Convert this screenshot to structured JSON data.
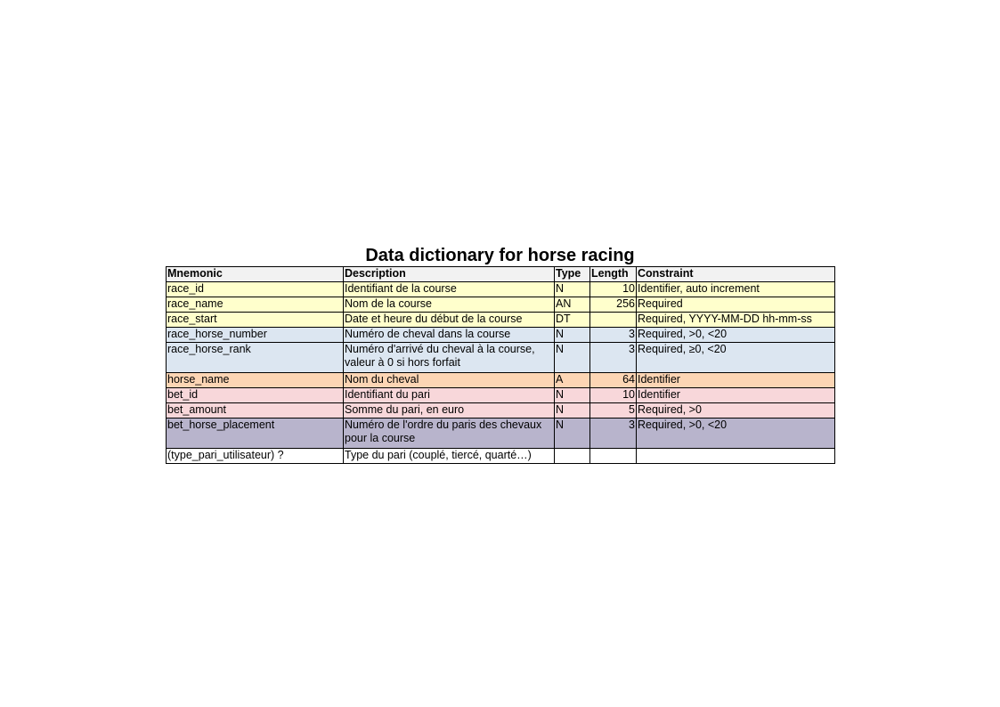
{
  "title": "Data dictionary for horse racing",
  "columns": [
    "Mnemonic",
    "Description",
    "Type",
    "Length",
    "Constraint"
  ],
  "header_color": "#f2f2f2",
  "rows": [
    {
      "mnemonic": "race_id",
      "description": "Identifiant de la course",
      "type": "N",
      "length": "10",
      "constraint": "Identifier, auto increment",
      "color": "#ffffcc"
    },
    {
      "mnemonic": "race_name",
      "description": "Nom de la course",
      "type": "AN",
      "length": "256",
      "constraint": "Required",
      "color": "#ffffcc"
    },
    {
      "mnemonic": "race_start",
      "description": "Date et heure du début de la course",
      "type": "DT",
      "length": "",
      "constraint": "Required, YYYY-MM-DD hh-mm-ss",
      "color": "#ffffcc"
    },
    {
      "mnemonic": "race_horse_number",
      "description": "Numéro de cheval dans la course",
      "type": "N",
      "length": "3",
      "constraint": "Required, >0, <20",
      "color": "#dce6f1"
    },
    {
      "mnemonic": "race_horse_rank",
      "description": "Numéro d'arrivé du cheval à la course, valeur à 0 si hors forfait",
      "type": "N",
      "length": "3",
      "constraint": "Required, ≥0, <20",
      "color": "#dce6f1"
    },
    {
      "mnemonic": "horse_name",
      "description": "Nom du cheval",
      "type": "A",
      "length": "64",
      "constraint": "Identifier",
      "color": "#fcd5b4"
    },
    {
      "mnemonic": "bet_id",
      "description": "Identifiant du pari",
      "type": "N",
      "length": "10",
      "constraint": "Identifier",
      "color": "#f8d7da"
    },
    {
      "mnemonic": "bet_amount",
      "description": "Somme du pari, en euro",
      "type": "N",
      "length": "5",
      "constraint": "Required, >0",
      "color": "#f8d7da"
    },
    {
      "mnemonic": "bet_horse_placement",
      "description": "Numéro de l'ordre du paris des chevaux pour la course",
      "type": "N",
      "length": "3",
      "constraint": "Required, >0, <20",
      "color": "#b8b4cc"
    },
    {
      "mnemonic": "(type_pari_utilisateur) ?",
      "description": "Type du pari (couplé, tiercé, quarté…)",
      "type": "",
      "length": "",
      "constraint": "",
      "color": "#ffffff"
    }
  ]
}
